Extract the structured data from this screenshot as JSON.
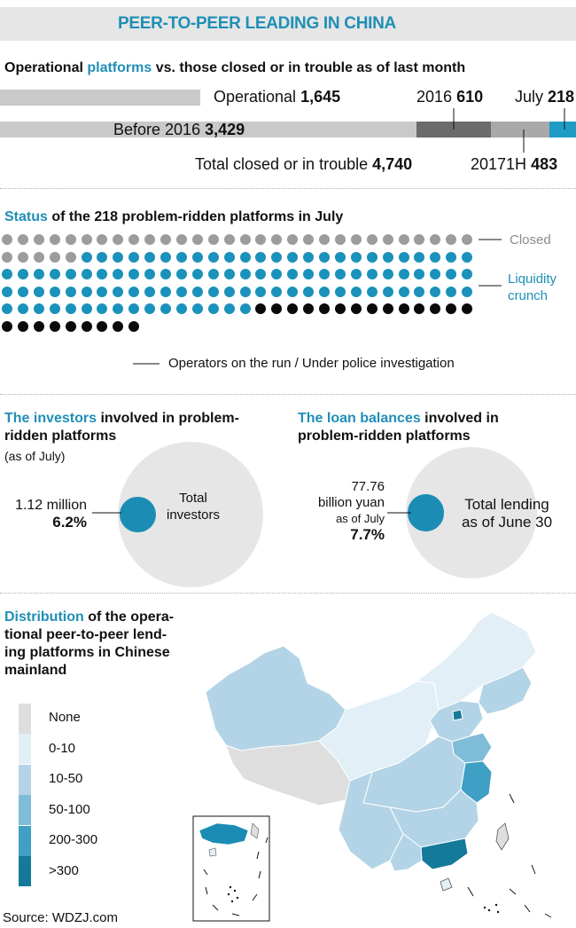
{
  "title": "PEER-TO-PEER LEADING IN CHINA",
  "section1": {
    "heading_pre": "Operational ",
    "heading_hl": "platforms",
    "heading_post": " vs. those closed or in trouble as of last month",
    "operational_label": "Operational",
    "operational_value": "1,645",
    "before2016_label": "Before 2016",
    "before2016_value": "3,429",
    "y2016_label": "2016",
    "y2016_value": "610",
    "h1_label": "20171H",
    "h1_value": "483",
    "july_label": "July",
    "july_value": "218",
    "total_label": "Total closed or in trouble",
    "total_value": "4,740"
  },
  "section2": {
    "heading_hl": "Status",
    "heading_post": " of the 218 problem-ridden platforms in July",
    "closed_label": "Closed",
    "liquidity_label_1": "Liquidity",
    "liquidity_label_2": "crunch",
    "run_label": "Operators on the run / Under police investigation",
    "counts": {
      "closed": 35,
      "liquidity": 101,
      "run": 23
    }
  },
  "section3": {
    "investors": {
      "heading_hl": "The investors",
      "heading_post": " involved in problem-",
      "heading_line2": "ridden platforms",
      "note": "(as of July)",
      "value": "1.12 million",
      "pct": "6.2%",
      "circle_label_1": "Total",
      "circle_label_2": "investors",
      "share": 0.062
    },
    "loans": {
      "heading_hl": "The loan balances",
      "heading_post": " involved in",
      "heading_line2": "problem-ridden platforms",
      "value_1": "77.76",
      "value_2": "billion yuan",
      "value_3": "as of July",
      "pct": "7.7%",
      "circle_label_1": "Total lending",
      "circle_label_2": "as of June 30",
      "share": 0.077
    }
  },
  "section4": {
    "heading_hl": "Distribution",
    "heading_line1_post": " of the opera-",
    "heading_line2": "tional peer-to-peer lend-",
    "heading_line3": "ing platforms in Chinese",
    "heading_line4": "mainland",
    "legend": [
      {
        "label": "None",
        "color": "#dedede"
      },
      {
        "label": "0-10",
        "color": "#e2eff7"
      },
      {
        "label": "10-50",
        "color": "#b3d4e6"
      },
      {
        "label": "50-100",
        "color": "#7fbcd8"
      },
      {
        "label": "200-300",
        "color": "#3f9fc5"
      },
      {
        "label": ">300",
        "color": "#137a99"
      }
    ]
  },
  "source": "Source: WDZJ.com",
  "chart_data": {
    "type": "bar",
    "title": "Operational platforms vs. those closed or in trouble as of last month",
    "categories": [
      "Operational",
      "Before 2016",
      "2016",
      "20171H",
      "July"
    ],
    "values": [
      1645,
      3429,
      610,
      483,
      218
    ],
    "total_closed_or_in_trouble": 4740,
    "colors": {
      "operational": "#c9c9c9",
      "before2016": "#c9c9c9",
      "y2016": "#6b6b6b",
      "h1": "#a9a9a9",
      "july": "#1f9cc6"
    }
  }
}
